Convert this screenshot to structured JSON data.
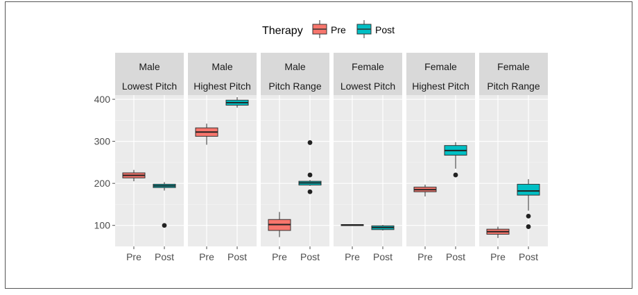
{
  "chart_data": {
    "type": "boxplot",
    "title": "",
    "xlabel": "",
    "ylabel": "",
    "ylim": [
      50,
      410
    ],
    "y_ticks": [
      100,
      200,
      300,
      400
    ],
    "legend": {
      "title": "Therapy",
      "position": "top",
      "entries": [
        {
          "name": "Pre",
          "color": "#F8766D"
        },
        {
          "name": "Post",
          "color": "#00BFC4"
        }
      ]
    },
    "categories": [
      "Pre",
      "Post"
    ],
    "facets": [
      {
        "sex": "Male",
        "measure": "Lowest Pitch",
        "boxes": [
          {
            "group": "Pre",
            "min": 205,
            "q1": 213,
            "median": 219,
            "q3": 225,
            "max": 232,
            "outliers": []
          },
          {
            "group": "Post",
            "min": 183,
            "q1": 190,
            "median": 194,
            "q3": 198,
            "max": 203,
            "outliers": [
              100
            ]
          }
        ]
      },
      {
        "sex": "Male",
        "measure": "Highest Pitch",
        "boxes": [
          {
            "group": "Pre",
            "min": 292,
            "q1": 312,
            "median": 322,
            "q3": 332,
            "max": 342,
            "outliers": []
          },
          {
            "group": "Post",
            "min": 380,
            "q1": 386,
            "median": 392,
            "q3": 398,
            "max": 405,
            "outliers": []
          }
        ]
      },
      {
        "sex": "Male",
        "measure": "Pitch Range",
        "boxes": [
          {
            "group": "Pre",
            "min": 72,
            "q1": 88,
            "median": 102,
            "q3": 114,
            "max": 132,
            "outliers": []
          },
          {
            "group": "Post",
            "min": 194,
            "q1": 196,
            "median": 201,
            "q3": 205,
            "max": 208,
            "outliers": [
              297,
              220,
              180
            ]
          }
        ]
      },
      {
        "sex": "Female",
        "measure": "Lowest Pitch",
        "boxes": [
          {
            "group": "Pre",
            "min": 99,
            "q1": 100,
            "median": 101,
            "q3": 102,
            "max": 103,
            "outliers": []
          },
          {
            "group": "Post",
            "min": 88,
            "q1": 90,
            "median": 95,
            "q3": 99,
            "max": 101,
            "outliers": []
          }
        ]
      },
      {
        "sex": "Female",
        "measure": "Highest Pitch",
        "boxes": [
          {
            "group": "Pre",
            "min": 169,
            "q1": 180,
            "median": 185,
            "q3": 191,
            "max": 197,
            "outliers": []
          },
          {
            "group": "Post",
            "min": 235,
            "q1": 267,
            "median": 278,
            "q3": 290,
            "max": 298,
            "outliers": [
              220
            ]
          }
        ]
      },
      {
        "sex": "Female",
        "measure": "Pitch Range",
        "boxes": [
          {
            "group": "Pre",
            "min": 70,
            "q1": 79,
            "median": 85,
            "q3": 91,
            "max": 97,
            "outliers": []
          },
          {
            "group": "Post",
            "min": 135,
            "q1": 172,
            "median": 182,
            "q3": 198,
            "max": 210,
            "outliers": [
              122,
              97
            ]
          }
        ]
      }
    ]
  }
}
